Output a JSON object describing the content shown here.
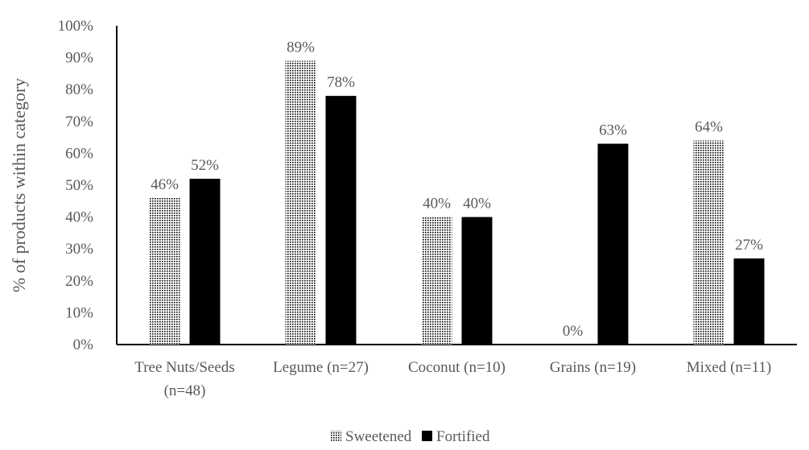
{
  "chart_data": {
    "type": "bar",
    "title": "",
    "xlabel": "",
    "ylabel": "% of products within category",
    "ylim": [
      0,
      100
    ],
    "yticks": [
      "0%",
      "10%",
      "20%",
      "30%",
      "40%",
      "50%",
      "60%",
      "70%",
      "80%",
      "90%",
      "100%"
    ],
    "grid": false,
    "legend_position": "bottom",
    "categories": [
      [
        "Tree Nuts/Seeds",
        "(n=48)"
      ],
      [
        "Legume (n=27)"
      ],
      [
        "Coconut (n=10)"
      ],
      [
        "Grains (n=19)"
      ],
      [
        "Mixed (n=11)"
      ]
    ],
    "series": [
      {
        "name": "Sweetened",
        "pattern": "dotted",
        "color": "#000000",
        "values": [
          46,
          89,
          40,
          0,
          64
        ],
        "labels": [
          "46%",
          "89%",
          "40%",
          "0%",
          "64%"
        ]
      },
      {
        "name": "Fortified",
        "pattern": "solid",
        "color": "#000000",
        "values": [
          52,
          78,
          40,
          63,
          27
        ],
        "labels": [
          "52%",
          "78%",
          "40%",
          "63%",
          "27%"
        ]
      }
    ]
  }
}
